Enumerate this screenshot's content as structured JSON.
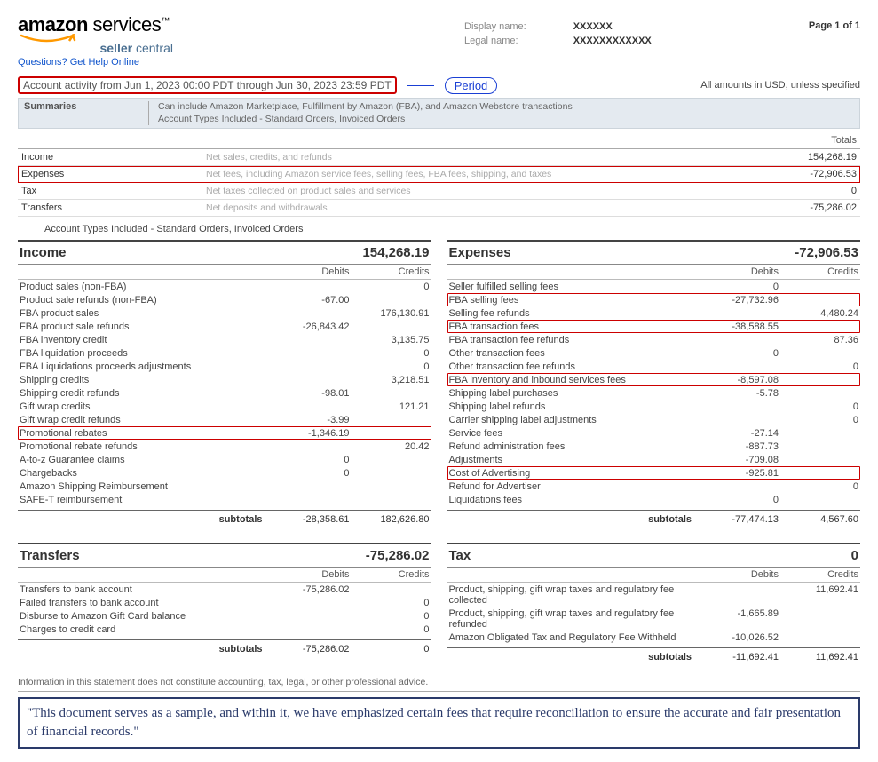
{
  "header": {
    "logo_word1": "amazon",
    "logo_word2": "services",
    "logo_tm": "™",
    "logo_sub_bold": "seller",
    "logo_sub_rest": " central",
    "help_link": "Questions? Get Help Online",
    "page_label": "Page 1 of 1",
    "display_name_lbl": "Display name:",
    "display_name_val": "XXXXXX",
    "legal_name_lbl": "Legal name:",
    "legal_name_val": "XXXXXXXXXXXX",
    "swoosh_color": "#ff9900"
  },
  "period": {
    "text": "Account activity from Jun 1, 2023 00:00 PDT through Jun 30, 2023 23:59 PDT",
    "callout": "Period",
    "amounts_note": "All amounts in USD, unless specified"
  },
  "summaries_bar": {
    "label": "Summaries",
    "desc_line1": "Can include Amazon Marketplace, Fulfillment by Amazon (FBA), and Amazon Webstore transactions",
    "desc_line2": "Account Types Included - Standard Orders, Invoiced Orders"
  },
  "summary": {
    "totals_header": "Totals",
    "rows": [
      {
        "label": "Income",
        "desc": "Net sales, credits, and refunds",
        "val": "154,268.19",
        "red": false
      },
      {
        "label": "Expenses",
        "desc": "Net fees, including Amazon service fees, selling fees, FBA fees, shipping, and taxes",
        "val": "-72,906.53",
        "red": true
      },
      {
        "label": "Tax",
        "desc": "Net taxes collected on product sales and services",
        "val": "0",
        "red": false
      },
      {
        "label": "Transfers",
        "desc": "Net deposits and withdrawals",
        "val": "-75,286.02",
        "red": false
      }
    ],
    "subnote": "Account Types Included - Standard Orders, Invoiced Orders"
  },
  "income": {
    "title": "Income",
    "total": "154,268.19",
    "debits_lbl": "Debits",
    "credits_lbl": "Credits",
    "rows": [
      {
        "label": "Product sales (non-FBA)",
        "debit": "",
        "credit": "0",
        "red": false
      },
      {
        "label": "Product sale refunds (non-FBA)",
        "debit": "-67.00",
        "credit": "",
        "red": false
      },
      {
        "label": "FBA product sales",
        "debit": "",
        "credit": "176,130.91",
        "red": false
      },
      {
        "label": "FBA product sale refunds",
        "debit": "-26,843.42",
        "credit": "",
        "red": false
      },
      {
        "label": "FBA inventory credit",
        "debit": "",
        "credit": "3,135.75",
        "red": false
      },
      {
        "label": "FBA liquidation proceeds",
        "debit": "",
        "credit": "0",
        "red": false
      },
      {
        "label": "FBA Liquidations proceeds adjustments",
        "debit": "",
        "credit": "0",
        "red": false
      },
      {
        "label": "Shipping credits",
        "debit": "",
        "credit": "3,218.51",
        "red": false
      },
      {
        "label": "Shipping credit refunds",
        "debit": "-98.01",
        "credit": "",
        "red": false
      },
      {
        "label": "Gift wrap credits",
        "debit": "",
        "credit": "121.21",
        "red": false
      },
      {
        "label": "Gift wrap credit refunds",
        "debit": "-3.99",
        "credit": "",
        "red": false
      },
      {
        "label": "Promotional rebates",
        "debit": "-1,346.19",
        "credit": "",
        "red": true
      },
      {
        "label": "Promotional rebate refunds",
        "debit": "",
        "credit": "20.42",
        "red": false
      },
      {
        "label": "A-to-z Guarantee claims",
        "debit": "0",
        "credit": "",
        "red": false
      },
      {
        "label": "Chargebacks",
        "debit": "0",
        "credit": "",
        "red": false
      },
      {
        "label": "Amazon Shipping Reimbursement",
        "debit": "",
        "credit": "",
        "red": false
      },
      {
        "label": "SAFE-T reimbursement",
        "debit": "",
        "credit": "",
        "red": false
      }
    ],
    "subtotals_lbl": "subtotals",
    "subtotals_debit": "-28,358.61",
    "subtotals_credit": "182,626.80"
  },
  "transfers": {
    "title": "Transfers",
    "total": "-75,286.02",
    "debits_lbl": "Debits",
    "credits_lbl": "Credits",
    "rows": [
      {
        "label": "Transfers to bank account",
        "debit": "-75,286.02",
        "credit": ""
      },
      {
        "label": "Failed transfers to bank account",
        "debit": "",
        "credit": "0"
      },
      {
        "label": "Disburse to Amazon Gift Card balance",
        "debit": "",
        "credit": "0"
      },
      {
        "label": "Charges to credit card",
        "debit": "",
        "credit": "0"
      }
    ],
    "subtotals_lbl": "subtotals",
    "subtotals_debit": "-75,286.02",
    "subtotals_credit": "0"
  },
  "expenses": {
    "title": "Expenses",
    "total": "-72,906.53",
    "debits_lbl": "Debits",
    "credits_lbl": "Credits",
    "rows": [
      {
        "label": "Seller fulfilled selling fees",
        "debit": "0",
        "credit": "",
        "red": false
      },
      {
        "label": "FBA selling fees",
        "debit": "-27,732.96",
        "credit": "",
        "red": true
      },
      {
        "label": "Selling fee refunds",
        "debit": "",
        "credit": "4,480.24",
        "red": false
      },
      {
        "label": "FBA transaction fees",
        "debit": "-38,588.55",
        "credit": "",
        "red": true
      },
      {
        "label": "FBA transaction fee refunds",
        "debit": "",
        "credit": "87.36",
        "red": false
      },
      {
        "label": "Other transaction fees",
        "debit": "0",
        "credit": "",
        "red": false
      },
      {
        "label": "Other transaction fee refunds",
        "debit": "",
        "credit": "0",
        "red": false
      },
      {
        "label": "FBA inventory and inbound services fees",
        "debit": "-8,597.08",
        "credit": "",
        "red": true
      },
      {
        "label": "Shipping label purchases",
        "debit": "-5.78",
        "credit": "",
        "red": false
      },
      {
        "label": "Shipping label refunds",
        "debit": "",
        "credit": "0",
        "red": false
      },
      {
        "label": "Carrier shipping label adjustments",
        "debit": "",
        "credit": "0",
        "red": false
      },
      {
        "label": "Service fees",
        "debit": "-27.14",
        "credit": "",
        "red": false
      },
      {
        "label": "Refund administration fees",
        "debit": "-887.73",
        "credit": "",
        "red": false
      },
      {
        "label": "Adjustments",
        "debit": "-709.08",
        "credit": "",
        "red": false
      },
      {
        "label": "Cost of Advertising",
        "debit": "-925.81",
        "credit": "",
        "red": true
      },
      {
        "label": "Refund for Advertiser",
        "debit": "",
        "credit": "0",
        "red": false
      },
      {
        "label": "Liquidations fees",
        "debit": "0",
        "credit": "",
        "red": false
      }
    ],
    "subtotals_lbl": "subtotals",
    "subtotals_debit": "-77,474.13",
    "subtotals_credit": "4,567.60"
  },
  "tax": {
    "title": "Tax",
    "total": "0",
    "debits_lbl": "Debits",
    "credits_lbl": "Credits",
    "rows": [
      {
        "label": "Product, shipping, gift wrap taxes and regulatory fee collected",
        "debit": "",
        "credit": "11,692.41"
      },
      {
        "label": "Product, shipping, gift wrap taxes and regulatory fee refunded",
        "debit": "-1,665.89",
        "credit": ""
      },
      {
        "label": "Amazon Obligated Tax and Regulatory Fee Withheld",
        "debit": "-10,026.52",
        "credit": ""
      }
    ],
    "subtotals_lbl": "subtotals",
    "subtotals_debit": "-11,692.41",
    "subtotals_credit": "11,692.41"
  },
  "footer": {
    "disclaimer": "Information in this statement does not constitute accounting, tax, legal, or other professional advice.",
    "quote": "\"This document serves as a sample, and within it, we have emphasized certain fees that require reconciliation to ensure the accurate and fair presentation of financial records.\""
  }
}
